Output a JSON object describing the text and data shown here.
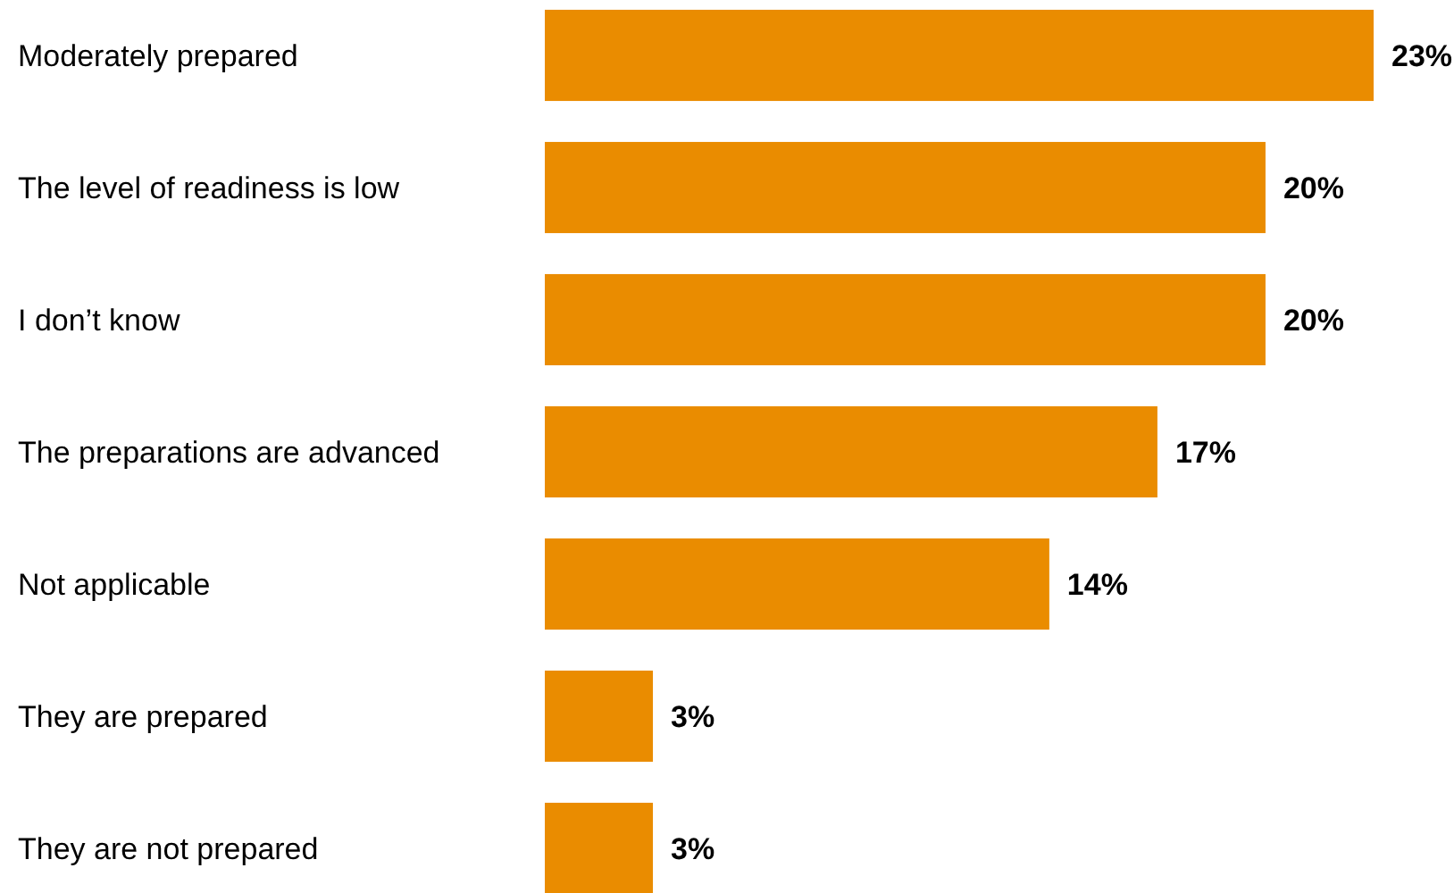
{
  "chart_data": {
    "type": "bar",
    "orientation": "horizontal",
    "categories": [
      "Moderately prepared",
      "The level of readiness is low",
      "I don’t know",
      "The preparations are advanced",
      "Not applicable",
      "They are prepared",
      "They are not prepared"
    ],
    "values": [
      23,
      20,
      20,
      17,
      14,
      3,
      3
    ],
    "value_labels": [
      "23%",
      "20%",
      "20%",
      "17%",
      "14%",
      "3%",
      "3%"
    ],
    "color": "#ea8c00"
  }
}
